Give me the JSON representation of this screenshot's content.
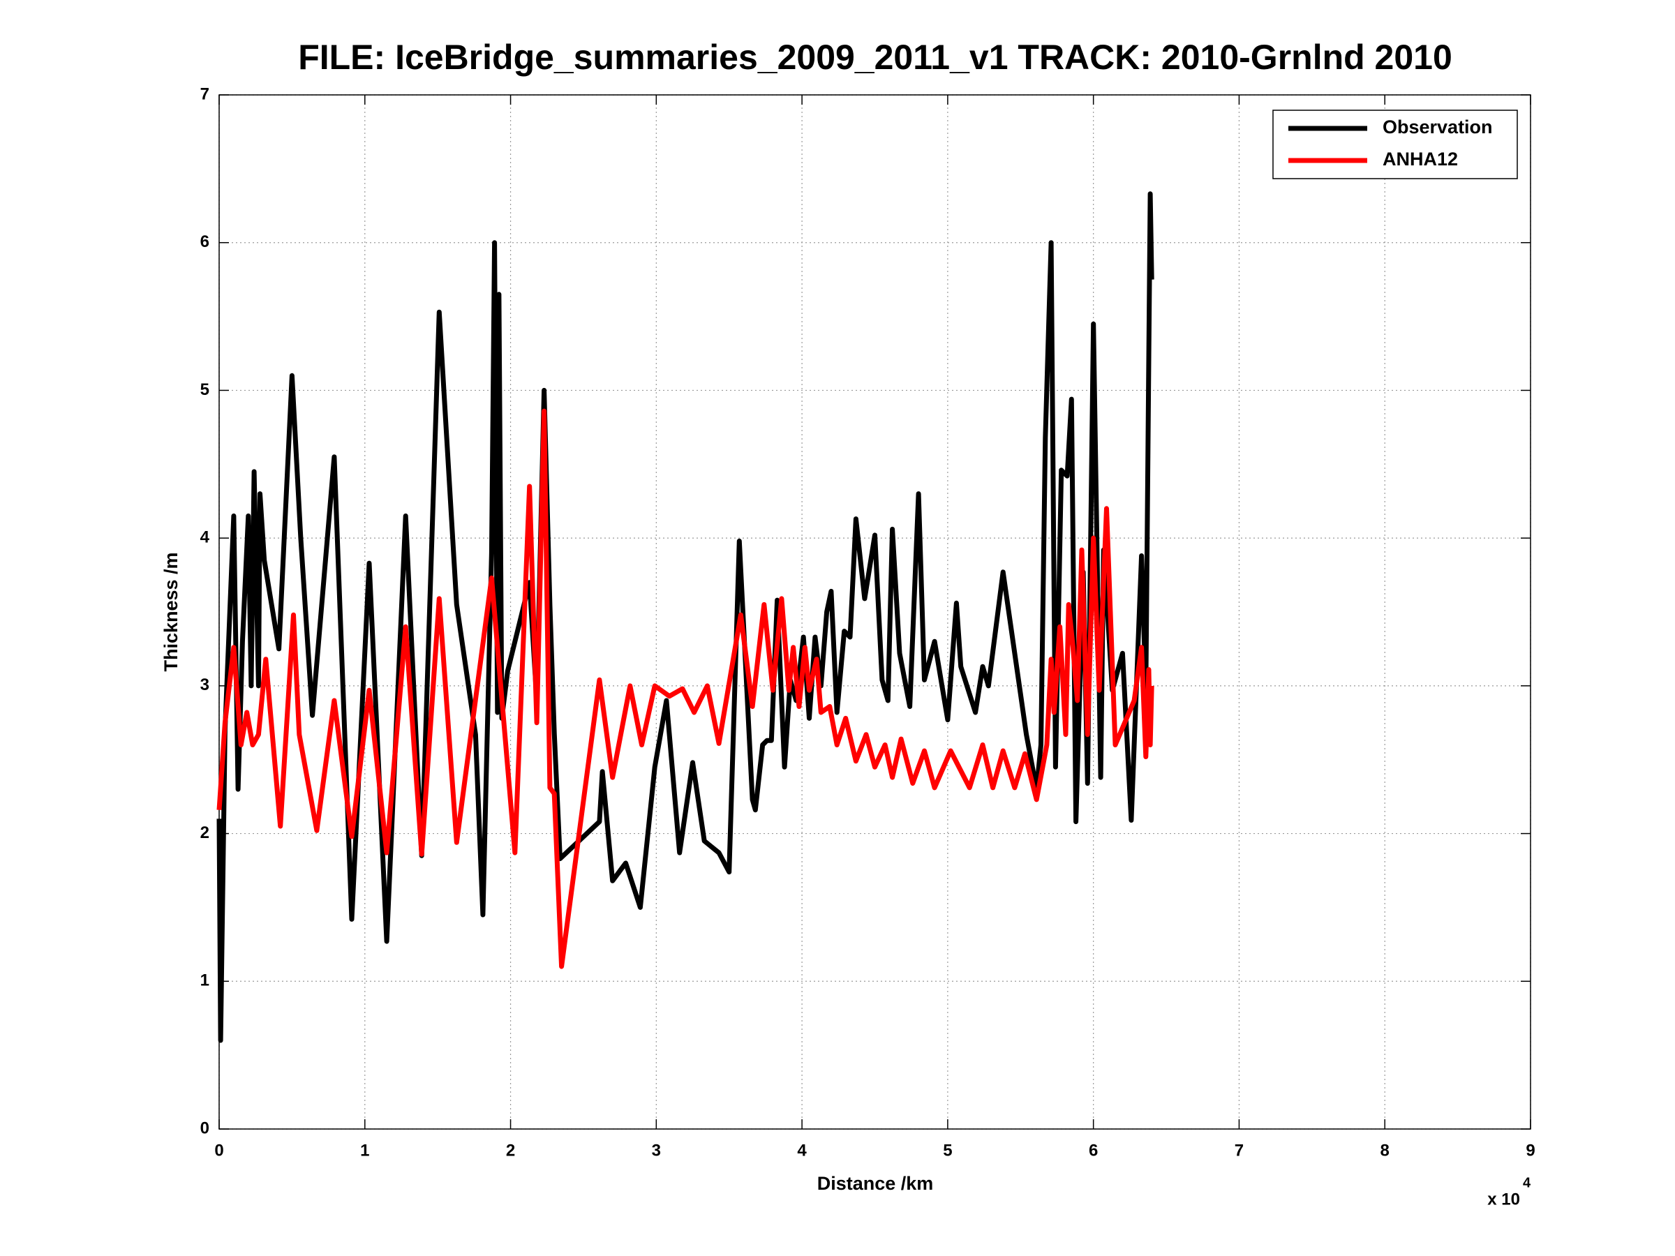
{
  "chart_data": {
    "type": "line",
    "title": "FILE: IceBridge_summaries_2009_2011_v1 TRACK: 2010-Grnlnd 2010",
    "x_label": "Distance /km",
    "y_label": "Thickness /m",
    "x_scale_base": "x 10",
    "x_scale_exponent": "4",
    "xlim": [
      0,
      9
    ],
    "xticks": [
      0,
      1,
      2,
      3,
      4,
      5,
      6,
      7,
      8,
      9
    ],
    "ylim": [
      0,
      7
    ],
    "yticks": [
      0,
      1,
      2,
      3,
      4,
      5,
      6,
      7
    ],
    "grid": true,
    "legend": "top-right",
    "series": [
      {
        "name": "Observation",
        "color": "#000000",
        "x": [
          0,
          0.01,
          0.04,
          0.1,
          0.13,
          0.16,
          0.2,
          0.22,
          0.24,
          0.27,
          0.28,
          0.31,
          0.41,
          0.5,
          0.56,
          0.64,
          0.79,
          0.91,
          1.03,
          1.15,
          1.28,
          1.39,
          1.51,
          1.63,
          1.76,
          1.81,
          1.87,
          1.89,
          1.91,
          1.92,
          1.94,
          1.98,
          2.13,
          2.18,
          2.23,
          2.27,
          2.3,
          2.34,
          2.61,
          2.63,
          2.7,
          2.79,
          2.89,
          2.99,
          3.07,
          3.16,
          3.25,
          3.33,
          3.43,
          3.5,
          3.57,
          3.66,
          3.68,
          3.73,
          3.76,
          3.79,
          3.83,
          3.88,
          3.92,
          3.96,
          4.01,
          4.05,
          4.09,
          4.13,
          4.17,
          4.2,
          4.24,
          4.29,
          4.33,
          4.37,
          4.43,
          4.5,
          4.55,
          4.59,
          4.62,
          4.67,
          4.74,
          4.8,
          4.84,
          4.91,
          5.0,
          5.06,
          5.09,
          5.19,
          5.24,
          5.28,
          5.38,
          5.54,
          5.61,
          5.64,
          5.67,
          5.71,
          5.74,
          5.78,
          5.82,
          5.85,
          5.88,
          5.93,
          5.96,
          6.0,
          6.05,
          6.07,
          6.13,
          6.2,
          6.26,
          6.33,
          6.36,
          6.39,
          6.4
        ],
        "values": [
          2.1,
          0.6,
          2.7,
          4.15,
          2.3,
          3.3,
          4.15,
          3.0,
          4.45,
          3.0,
          4.3,
          3.85,
          3.25,
          5.1,
          4.0,
          2.8,
          4.55,
          1.42,
          3.83,
          1.27,
          4.15,
          1.85,
          5.53,
          3.55,
          2.67,
          1.45,
          3.9,
          6.0,
          2.82,
          5.65,
          2.78,
          3.1,
          3.7,
          2.9,
          5.0,
          3.55,
          2.68,
          1.83,
          2.08,
          2.42,
          1.68,
          1.8,
          1.5,
          2.45,
          2.9,
          1.87,
          2.48,
          1.95,
          1.87,
          1.74,
          3.98,
          2.23,
          2.16,
          2.6,
          2.63,
          2.63,
          3.58,
          2.45,
          3.04,
          2.9,
          3.33,
          2.78,
          3.33,
          3.0,
          3.5,
          3.64,
          2.82,
          3.37,
          3.33,
          4.13,
          3.59,
          4.02,
          3.04,
          2.9,
          4.06,
          3.22,
          2.86,
          4.3,
          3.04,
          3.3,
          2.77,
          3.56,
          3.13,
          2.82,
          3.13,
          3.0,
          3.77,
          2.67,
          2.3,
          2.6,
          4.68,
          6.0,
          2.45,
          4.46,
          4.42,
          4.94,
          2.08,
          3.77,
          2.34,
          5.45,
          2.38,
          3.92,
          2.97,
          3.22,
          2.09,
          3.88,
          2.97,
          6.33,
          5.75
        ]
      },
      {
        "name": "ANHA12",
        "color": "#ff0000",
        "x": [
          0,
          0.04,
          0.1,
          0.15,
          0.19,
          0.23,
          0.27,
          0.32,
          0.42,
          0.51,
          0.55,
          0.67,
          0.79,
          0.91,
          1.03,
          1.15,
          1.28,
          1.39,
          1.51,
          1.63,
          1.87,
          2.03,
          2.13,
          2.18,
          2.23,
          2.27,
          2.3,
          2.35,
          2.61,
          2.7,
          2.82,
          2.9,
          2.99,
          3.09,
          3.18,
          3.26,
          3.35,
          3.43,
          3.58,
          3.66,
          3.74,
          3.8,
          3.86,
          3.91,
          3.94,
          3.98,
          4.02,
          4.05,
          4.1,
          4.13,
          4.19,
          4.24,
          4.3,
          4.37,
          4.44,
          4.5,
          4.57,
          4.62,
          4.68,
          4.76,
          4.84,
          4.91,
          5.02,
          5.15,
          5.24,
          5.31,
          5.38,
          5.46,
          5.53,
          5.61,
          5.68,
          5.71,
          5.73,
          5.77,
          5.81,
          5.83,
          5.86,
          5.89,
          5.92,
          5.96,
          6.0,
          6.04,
          6.09,
          6.15,
          6.28,
          6.33,
          6.36,
          6.38,
          6.39,
          6.4
        ],
        "values": [
          2.16,
          2.75,
          3.26,
          2.6,
          2.82,
          2.6,
          2.67,
          3.18,
          2.05,
          3.48,
          2.67,
          2.02,
          2.9,
          1.98,
          2.97,
          1.87,
          3.4,
          1.86,
          3.59,
          1.94,
          3.73,
          1.87,
          4.35,
          2.75,
          4.86,
          2.31,
          2.27,
          1.1,
          3.04,
          2.38,
          3.0,
          2.6,
          3.0,
          2.93,
          2.98,
          2.82,
          3.0,
          2.61,
          3.48,
          2.86,
          3.55,
          2.97,
          3.59,
          2.97,
          3.26,
          2.86,
          3.26,
          2.97,
          3.18,
          2.82,
          2.86,
          2.6,
          2.78,
          2.49,
          2.67,
          2.45,
          2.6,
          2.38,
          2.64,
          2.34,
          2.56,
          2.31,
          2.56,
          2.31,
          2.6,
          2.31,
          2.56,
          2.31,
          2.54,
          2.23,
          2.6,
          3.18,
          2.82,
          3.4,
          2.67,
          3.55,
          3.26,
          2.9,
          3.92,
          2.67,
          4.0,
          2.97,
          4.2,
          2.6,
          2.9,
          3.26,
          2.52,
          3.11,
          2.6,
          3.0
        ]
      }
    ]
  }
}
